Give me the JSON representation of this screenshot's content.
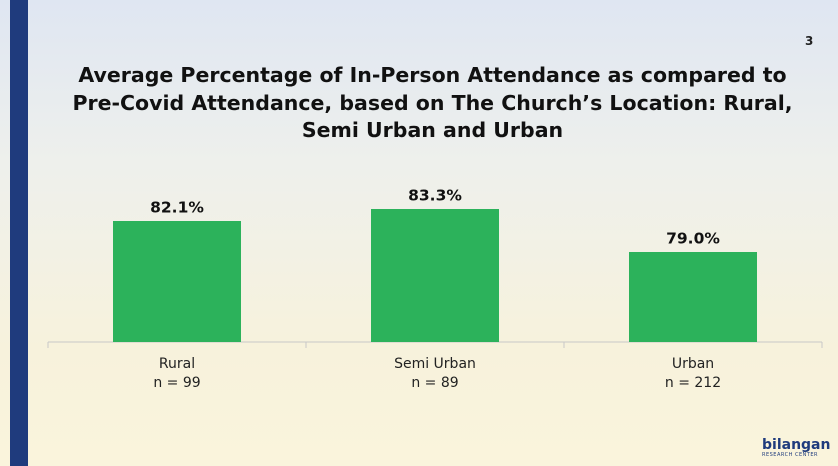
{
  "page_number": "3",
  "chart_data": {
    "type": "bar",
    "title": "Average Percentage of In-Person Attendance as compared to Pre-Covid Attendance, based on The Church’s Location: Rural, Semi Urban and Urban",
    "categories": [
      "Rural",
      "Semi Urban",
      "Urban"
    ],
    "sample_sizes": [
      "n = 99",
      "n = 89",
      "n = 212"
    ],
    "values": [
      82.1,
      83.3,
      79.0
    ],
    "value_labels": [
      "82.1%",
      "83.3%",
      "79.0%"
    ],
    "color": "#2cb25b",
    "ylim": [
      70,
      90
    ]
  },
  "logo": {
    "name": "bilangan",
    "subtitle": "RESEARCH CENTER"
  }
}
